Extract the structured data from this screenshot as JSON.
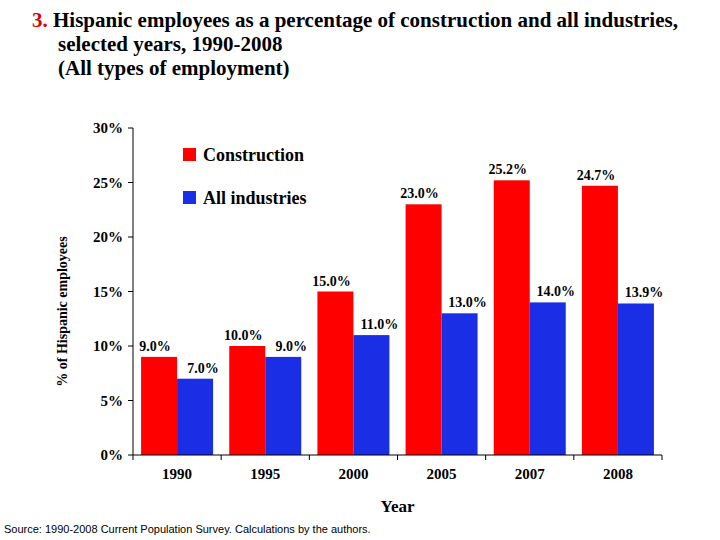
{
  "chart_data": {
    "type": "bar",
    "title": "3. Hispanic employees as a percentage of construction and all industries, selected years, 1990-2008",
    "subtitle": "(All types of employment)",
    "x_label": "Year",
    "y_label": "% of Hispanic employees",
    "source": "Source: 1990-2008 Current Population Survey. Calculations by the authors.",
    "categories": [
      "1990",
      "1995",
      "2000",
      "2005",
      "2007",
      "2008"
    ],
    "series": [
      {
        "name": "Construction",
        "color": "#ff0000",
        "values": [
          9.0,
          10.0,
          15.0,
          23.0,
          25.2,
          24.7
        ],
        "value_labels": [
          "9.0%",
          "10.0%",
          "15.0%",
          "23.0%",
          "25.2%",
          "24.7%"
        ]
      },
      {
        "name": "All industries",
        "color": "#1a2ee6",
        "values": [
          7.0,
          9.0,
          11.0,
          13.0,
          14.0,
          13.9
        ],
        "value_labels": [
          "7.0%",
          "9.0%",
          "11.0%",
          "13.0%",
          "14.0%",
          "13.9%"
        ]
      }
    ],
    "ylim": [
      0,
      30
    ],
    "yticks": [
      {
        "value": 0,
        "label": "0%"
      },
      {
        "value": 5,
        "label": "5%"
      },
      {
        "value": 10,
        "label": "10%"
      },
      {
        "value": 15,
        "label": "15%"
      },
      {
        "value": 20,
        "label": "20%"
      },
      {
        "value": 25,
        "label": "25%"
      },
      {
        "value": 30,
        "label": "30%"
      }
    ],
    "grid": false,
    "legend": "upper left",
    "data_labels": true
  }
}
